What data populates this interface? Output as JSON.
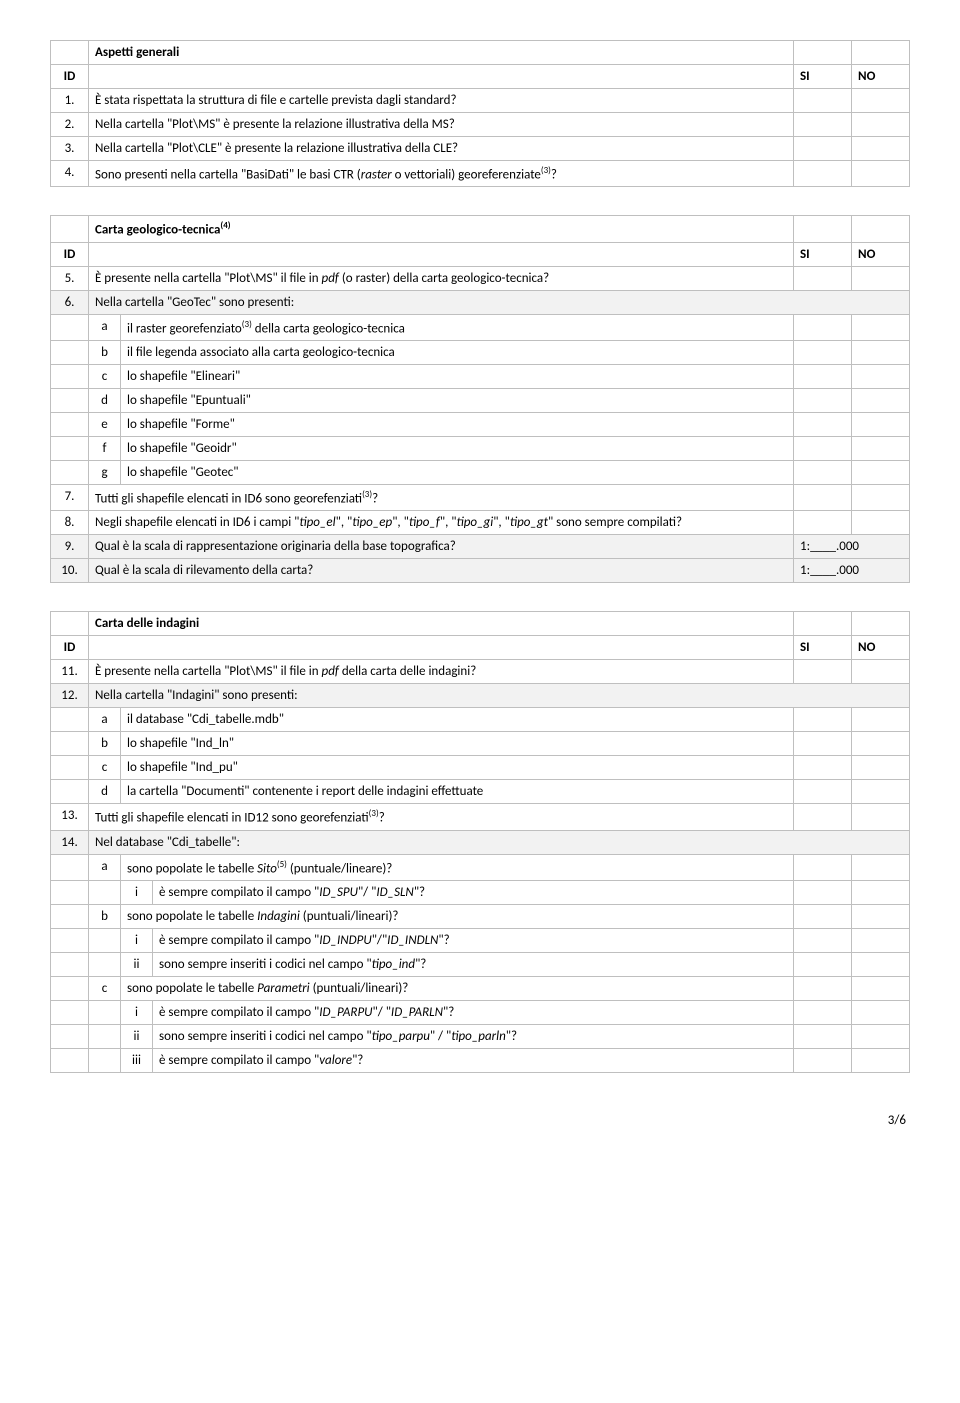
{
  "labels": {
    "id": "ID",
    "si": "SI",
    "no": "NO"
  },
  "t1": {
    "title": "Aspetti generali",
    "rows": [
      {
        "id": "1.",
        "text": "È stata rispettata la struttura di file e cartelle prevista dagli standard?"
      },
      {
        "id": "2.",
        "text": "Nella cartella \"Plot\\MS\" è presente la relazione illustrativa della MS?"
      },
      {
        "id": "3.",
        "text": "Nella cartella \"Plot\\CLE\" è presente la relazione illustrativa della CLE?"
      },
      {
        "id": "4.",
        "text_pre": "Sono presenti nella cartella \"BasiDati\" le basi CTR (",
        "text_ital": "raster",
        "text_mid": " o vettoriali) georeferenziate",
        "sup": "(3)",
        "text_post": "?"
      }
    ]
  },
  "t2": {
    "title": "Carta geologico-tecnica",
    "title_sup": "(4)",
    "r5": {
      "id": "5.",
      "text_pre": "È presente nella cartella \"Plot\\MS\" il file in ",
      "text_ital": "pdf",
      "text_post": " (o raster) della carta geologico-tecnica?"
    },
    "r6": {
      "id": "6.",
      "text": "Nella cartella \"GeoTec\" sono presenti:"
    },
    "r6subs": [
      {
        "l": "a",
        "text_pre": "il raster georefenziato",
        "sup": "(3)",
        "text_post": " della carta geologico-tecnica"
      },
      {
        "l": "b",
        "text": "il file legenda associato alla carta geologico-tecnica"
      },
      {
        "l": "c",
        "text": "lo shapefile \"Elineari\""
      },
      {
        "l": "d",
        "text": "lo shapefile \"Epuntuali\""
      },
      {
        "l": "e",
        "text": "lo shapefile \"Forme\""
      },
      {
        "l": "f",
        "text": "lo shapefile \"Geoidr\""
      },
      {
        "l": "g",
        "text": "lo shapefile \"Geotec\""
      }
    ],
    "r7": {
      "id": "7.",
      "text_pre": "Tutti gli shapefile elencati in ID6 sono georefenziati",
      "sup": "(3)",
      "text_post": "?"
    },
    "r8": {
      "id": "8.",
      "text_pre": "Negli shapefile elencati in ID6 i campi \"",
      "i1": "tipo_el",
      "s1": "\", \"",
      "i2": "tipo_ep",
      "s2": "\", \"",
      "i3": "tipo_f",
      "s3": "\", \"",
      "i4": "tipo_gi",
      "s4": "\", \"",
      "i5": "tipo_gt",
      "text_post": "\" sono sempre compilati?"
    },
    "r9": {
      "id": "9.",
      "text": "Qual è la scala di rappresentazione originaria della base topografica?",
      "val": "1:____.000"
    },
    "r10": {
      "id": "10.",
      "text": "Qual è la scala di rilevamento della carta?",
      "val": "1:____.000"
    }
  },
  "t3": {
    "title": "Carta delle indagini",
    "r11": {
      "id": "11.",
      "text_pre": "È presente nella cartella \"Plot\\MS\" il file in ",
      "text_ital": "pdf",
      "text_post": " della carta delle indagini?"
    },
    "r12": {
      "id": "12.",
      "text": "Nella cartella \"Indagini\" sono presenti:"
    },
    "r12subs": [
      {
        "l": "a",
        "text": "il database \"Cdi_tabelle.mdb\""
      },
      {
        "l": "b",
        "text": "lo shapefile \"Ind_ln\""
      },
      {
        "l": "c",
        "text": "lo shapefile \"Ind_pu\""
      },
      {
        "l": "d",
        "text": "la cartella \"Documenti\" contenente i report delle indagini effettuate"
      }
    ],
    "r13": {
      "id": "13.",
      "text_pre": "Tutti gli shapefile elencati in ID12 sono georefenziati",
      "sup": "(3)",
      "text_post": "?"
    },
    "r14": {
      "id": "14.",
      "text": "Nel database \"Cdi_tabelle\":"
    },
    "r14a": {
      "l": "a",
      "text_pre": "sono popolate le tabelle ",
      "text_ital": "Sito",
      "sup": "(5)",
      "text_post": " (puntuale/lineare)?"
    },
    "r14a_i": {
      "l": "i",
      "text_pre": "è sempre compilato il campo \"",
      "i1": "ID_SPU",
      "s1": "\"/ \"",
      "i2": "ID_SLN",
      "text_post": "\"?"
    },
    "r14b": {
      "l": "b",
      "text_pre": "sono popolate le tabelle ",
      "text_ital": "Indagini",
      "text_post": " (puntuali/lineari)?"
    },
    "r14b_i": {
      "l": "i",
      "text_pre": "è sempre compilato il campo \"",
      "i1": "ID_INDPU",
      "s1": "\"/\"",
      "i2": "ID_INDLN",
      "text_post": "\"?"
    },
    "r14b_ii": {
      "l": "ii",
      "text_pre": "sono sempre inseriti i codici nel campo \"",
      "i1": "tipo_ind",
      "text_post": "\"?"
    },
    "r14c": {
      "l": "c",
      "text_pre": "sono popolate le tabelle ",
      "text_ital": "Parametri",
      "text_post": " (puntuali/lineari)?"
    },
    "r14c_i": {
      "l": "i",
      "text_pre": "è sempre compilato il campo \"",
      "i1": "ID_PARPU",
      "s1": "\"/ \"",
      "i2": "ID_PARLN",
      "text_post": "\"?"
    },
    "r14c_ii": {
      "l": "ii",
      "text_pre": "sono sempre inseriti i codici nel campo \"",
      "i1": "tipo_parpu",
      "s1": "\" / \"",
      "i2": "tipo_parln",
      "text_post": "\"?"
    },
    "r14c_iii": {
      "l": "iii",
      "text_pre": "è sempre compilato il campo \"",
      "i1": "valore",
      "text_post": "\"?"
    }
  },
  "page": "3/6"
}
